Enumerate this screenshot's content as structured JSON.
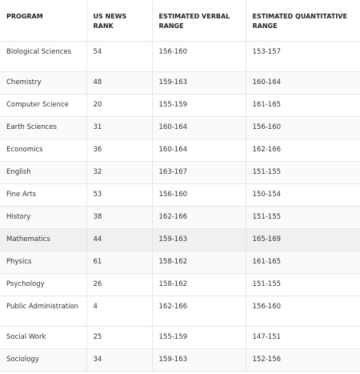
{
  "table": {
    "header": [
      "PROGRAM",
      "US NEWS RANK",
      "ESTIMATED VERBAL RANGE",
      "ESTIMATED QUANTITATIVE RANGE"
    ],
    "rows": [
      [
        "Biological Sciences",
        "54",
        "156-160",
        "153-157"
      ],
      [
        "Chemistry",
        "48",
        "159-163",
        "160-164"
      ],
      [
        "Computer Science",
        "20",
        "155-159",
        "161-165"
      ],
      [
        "Earth Sciences",
        "31",
        "160-164",
        "156-160"
      ],
      [
        "Economics",
        "36",
        "160-164",
        "162-166"
      ],
      [
        "English",
        "32",
        "163-167",
        "151-155"
      ],
      [
        "Fine Arts",
        "53",
        "156-160",
        "150-154"
      ],
      [
        "History",
        "38",
        "162-166",
        "151-155"
      ],
      [
        "Mathematics",
        "44",
        "159-163",
        "165-169"
      ],
      [
        "Physics",
        "61",
        "158-162",
        "161-165"
      ],
      [
        "Psychology",
        "26",
        "158-162",
        "151-155"
      ],
      [
        "Public Administration",
        "4",
        "162-166",
        "156-160"
      ],
      [
        "Social Work",
        "25",
        "155-159",
        "147-151"
      ],
      [
        "Sociology",
        "34",
        "159-163",
        "152-156"
      ]
    ]
  }
}
